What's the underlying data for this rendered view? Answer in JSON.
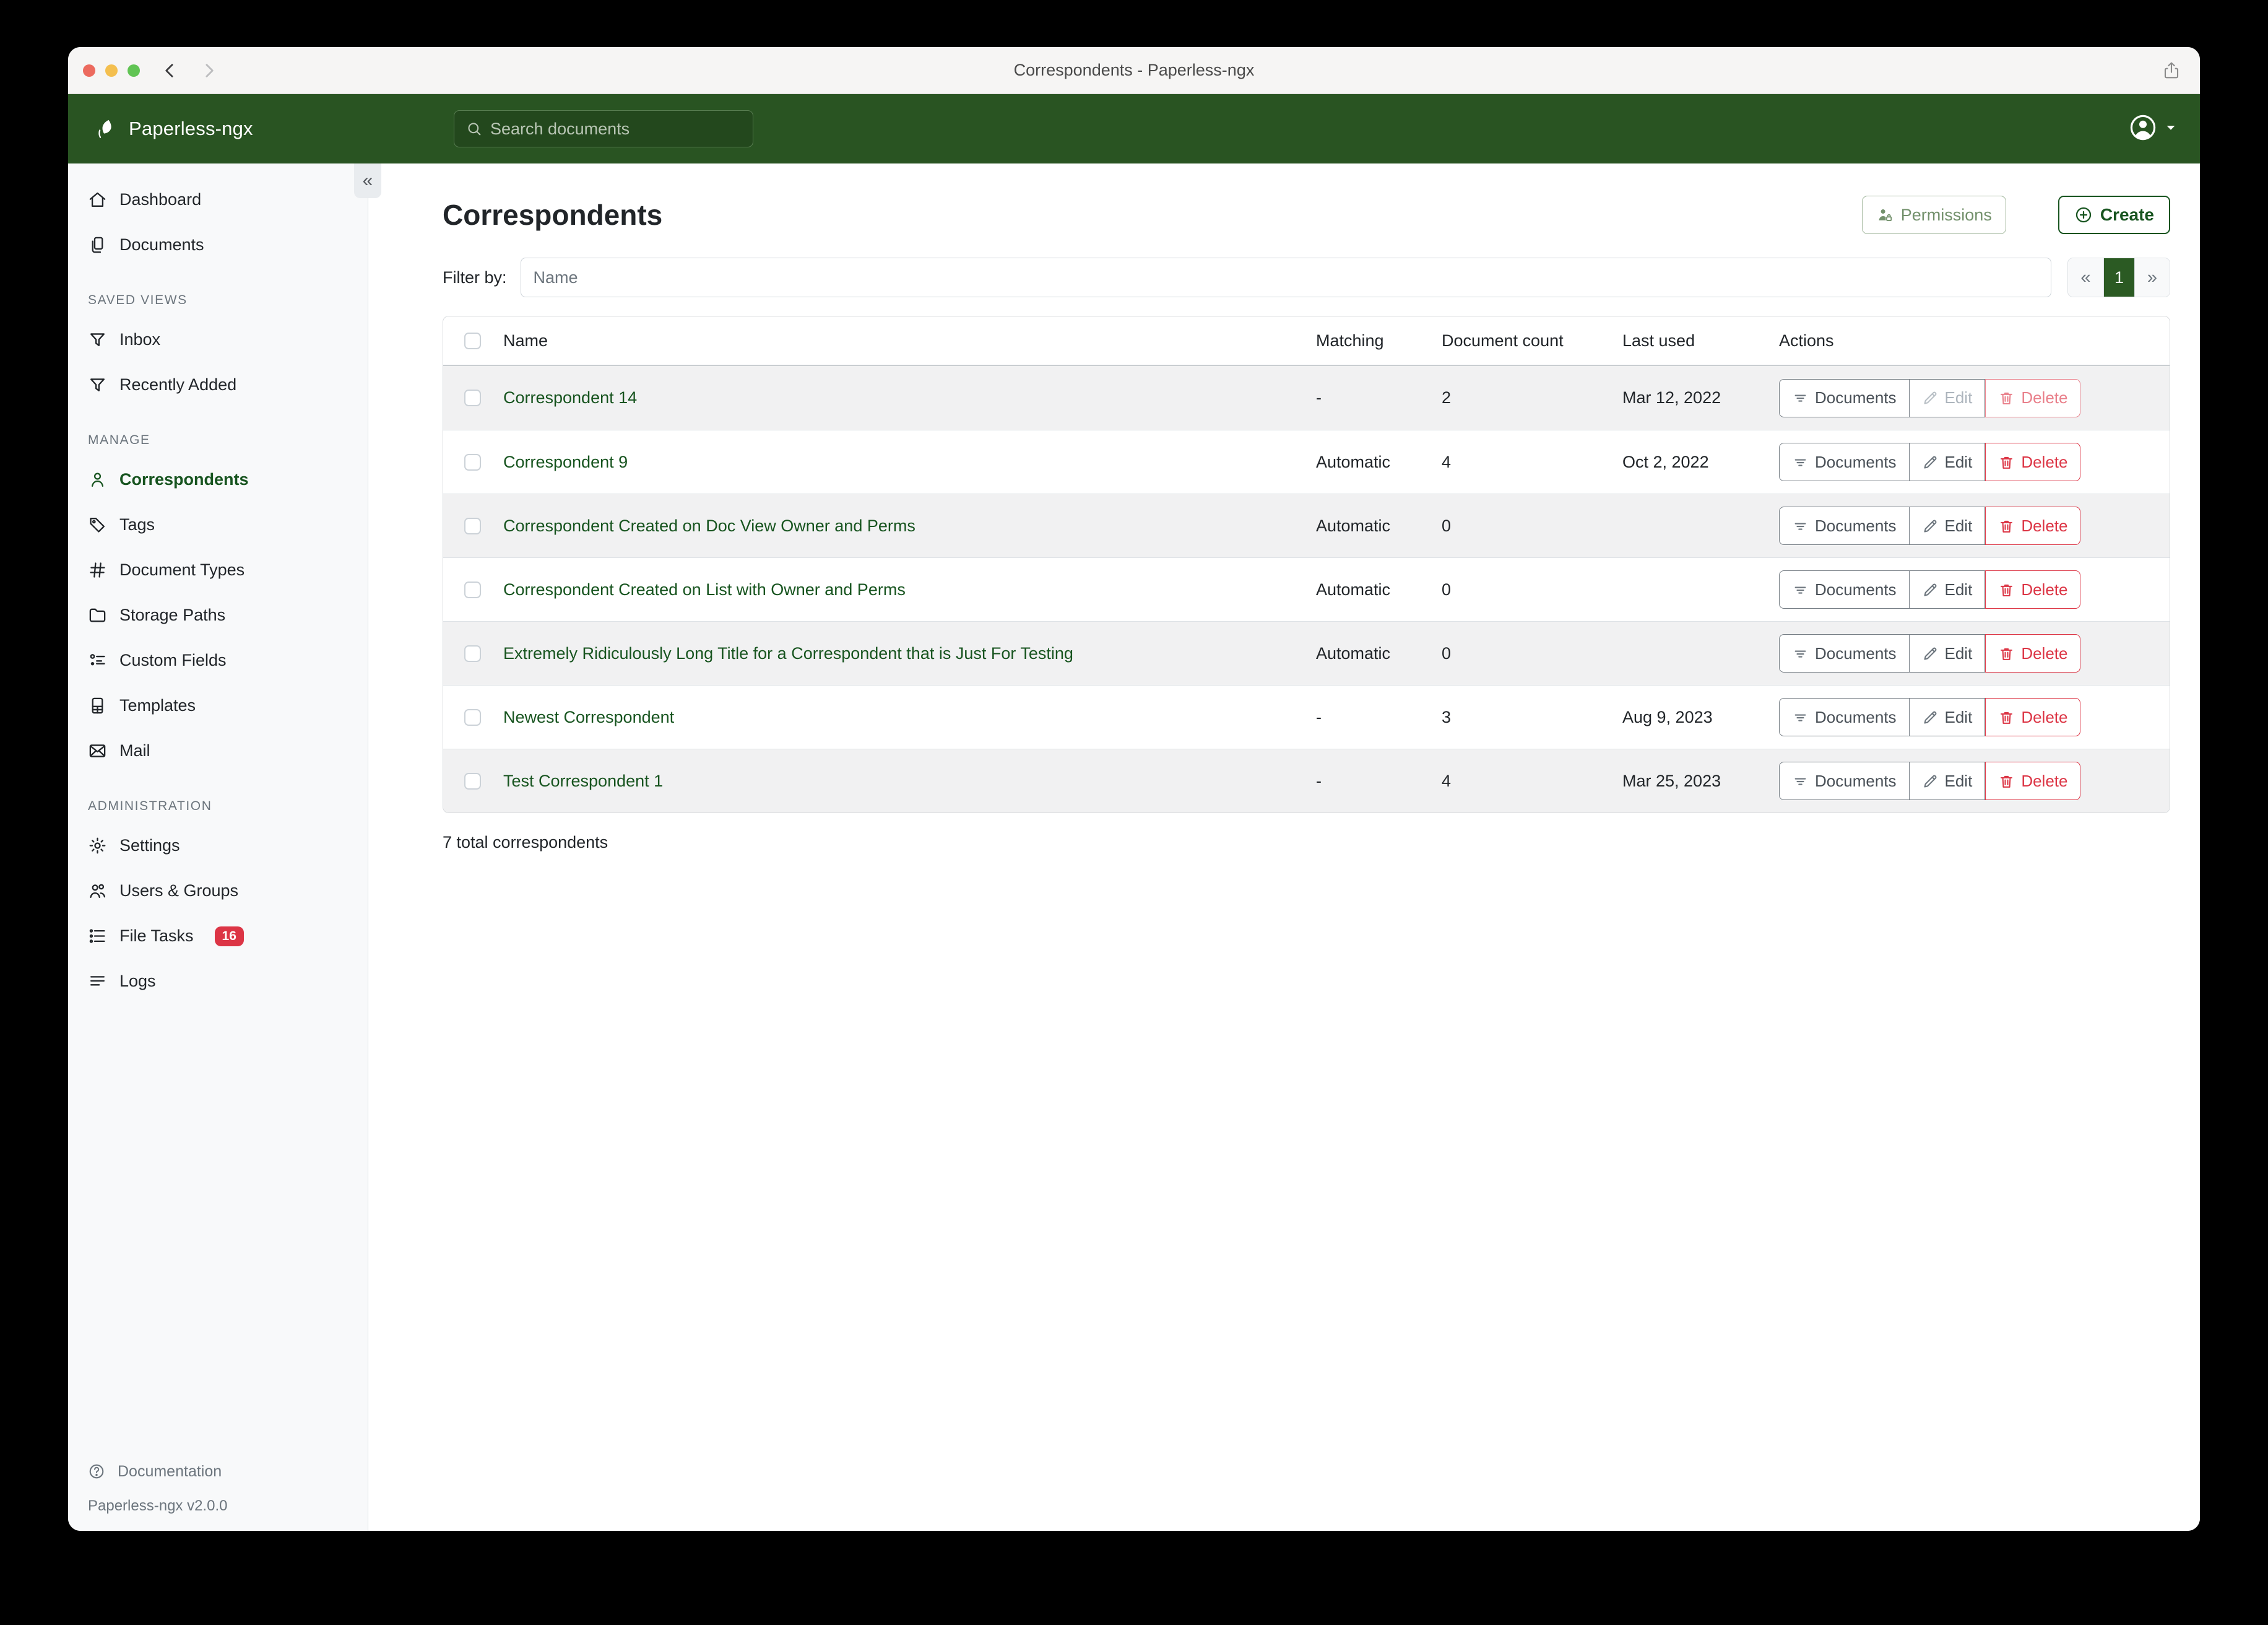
{
  "window": {
    "title": "Correspondents - Paperless-ngx"
  },
  "header": {
    "brand": "Paperless-ngx",
    "search_placeholder": "Search documents",
    "avatar_icon": "person-circle"
  },
  "sidebar": {
    "sections": [
      {
        "title": "",
        "items": [
          {
            "label": "Dashboard",
            "icon": "home"
          },
          {
            "label": "Documents",
            "icon": "copy"
          }
        ]
      },
      {
        "title": "SAVED VIEWS",
        "items": [
          {
            "label": "Inbox",
            "icon": "funnel"
          },
          {
            "label": "Recently Added",
            "icon": "funnel"
          }
        ]
      },
      {
        "title": "MANAGE",
        "items": [
          {
            "label": "Correspondents",
            "icon": "person",
            "active": true
          },
          {
            "label": "Tags",
            "icon": "tag"
          },
          {
            "label": "Document Types",
            "icon": "hash"
          },
          {
            "label": "Storage Paths",
            "icon": "folder"
          },
          {
            "label": "Custom Fields",
            "icon": "custom-fields"
          },
          {
            "label": "Templates",
            "icon": "file-text"
          },
          {
            "label": "Mail",
            "icon": "envelope"
          }
        ]
      },
      {
        "title": "ADMINISTRATION",
        "items": [
          {
            "label": "Settings",
            "icon": "gear"
          },
          {
            "label": "Users & Groups",
            "icon": "users"
          },
          {
            "label": "File Tasks",
            "icon": "tasks",
            "badge": "16"
          },
          {
            "label": "Logs",
            "icon": "logs"
          }
        ]
      }
    ],
    "documentation": "Documentation",
    "version": "Paperless-ngx v2.0.0"
  },
  "main": {
    "title": "Correspondents",
    "permissions_button": "Permissions",
    "create_button": "Create",
    "filter_label": "Filter by:",
    "filter_placeholder": "Name",
    "pagination": {
      "prev": "«",
      "current": "1",
      "next": "»"
    },
    "summary": "7 total correspondents"
  },
  "table": {
    "columns": [
      "Name",
      "Matching",
      "Document count",
      "Last used",
      "Actions"
    ],
    "action_labels": {
      "documents": "Documents",
      "edit": "Edit",
      "delete": "Delete"
    },
    "rows": [
      {
        "name": "Correspondent 14",
        "matching": "-",
        "count": "2",
        "last_used": "Mar 12, 2022",
        "actions_muted": true
      },
      {
        "name": "Correspondent 9",
        "matching": "Automatic",
        "count": "4",
        "last_used": "Oct 2, 2022"
      },
      {
        "name": "Correspondent Created on Doc View Owner and Perms",
        "matching": "Automatic",
        "count": "0",
        "last_used": ""
      },
      {
        "name": "Correspondent Created on List with Owner and Perms",
        "matching": "Automatic",
        "count": "0",
        "last_used": ""
      },
      {
        "name": "Extremely Ridiculously Long Title for a Correspondent that is Just For Testing",
        "matching": "Automatic",
        "count": "0",
        "last_used": ""
      },
      {
        "name": "Newest Correspondent",
        "matching": "-",
        "count": "3",
        "last_used": "Aug 9, 2023"
      },
      {
        "name": "Test Correspondent 1",
        "matching": "-",
        "count": "4",
        "last_used": "Mar 25, 2023"
      }
    ]
  },
  "colors": {
    "header_green": "#295422",
    "accent_green": "#17541f",
    "pagination_active_green": "#2b5a23",
    "danger_red": "#dc3545",
    "sidebar_bg": "#f8f9fa",
    "row_stripe": "#f1f1f2"
  }
}
